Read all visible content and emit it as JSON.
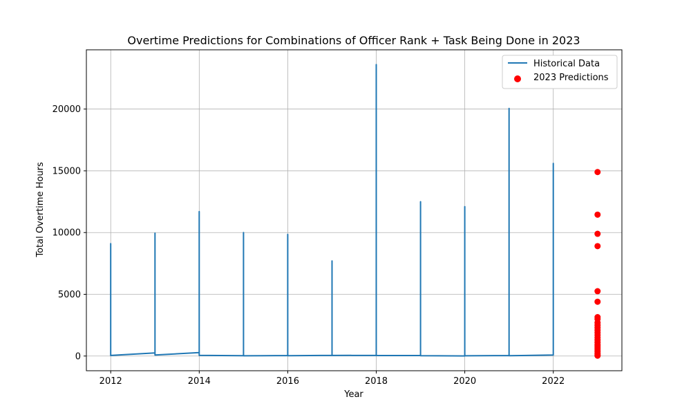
{
  "chart_data": {
    "type": "line",
    "title": "Overtime Predictions for Combinations of Officer Rank + Task Being Done in 2023",
    "xlabel": "Year",
    "ylabel": "Total Overtime Hours",
    "xlim": [
      2011.45,
      2023.55
    ],
    "ylim": [
      -1190,
      24800
    ],
    "xticks": [
      2012,
      2014,
      2016,
      2018,
      2020,
      2022
    ],
    "yticks": [
      0,
      5000,
      10000,
      15000,
      20000
    ],
    "grid": true,
    "legend_position": "top-right",
    "series": [
      {
        "name": "Historical Data",
        "type": "line",
        "color": "#1f77b4",
        "points": [
          [
            2012,
            0
          ],
          [
            2012,
            9100
          ],
          [
            2012,
            50
          ],
          [
            2013,
            250
          ],
          [
            2013,
            9950
          ],
          [
            2013,
            80
          ],
          [
            2014,
            280
          ],
          [
            2014,
            11700
          ],
          [
            2014,
            60
          ],
          [
            2015,
            30
          ],
          [
            2015,
            10000
          ],
          [
            2015,
            20
          ],
          [
            2016,
            40
          ],
          [
            2016,
            9850
          ],
          [
            2016,
            30
          ],
          [
            2017,
            60
          ],
          [
            2017,
            7700
          ],
          [
            2017,
            50
          ],
          [
            2018,
            60
          ],
          [
            2018,
            23600
          ],
          [
            2018,
            40
          ],
          [
            2019,
            50
          ],
          [
            2019,
            12500
          ],
          [
            2019,
            30
          ],
          [
            2020,
            10
          ],
          [
            2020,
            12100
          ],
          [
            2020,
            20
          ],
          [
            2021,
            40
          ],
          [
            2021,
            20050
          ],
          [
            2021,
            30
          ],
          [
            2022,
            80
          ],
          [
            2022,
            15600
          ],
          [
            2022,
            80
          ]
        ]
      },
      {
        "name": "2023 Predictions",
        "type": "scatter",
        "color": "#ff0000",
        "x": 2023,
        "values": [
          14900,
          11450,
          9900,
          8900,
          5250,
          4400,
          3150,
          3000,
          2700,
          2500,
          2300,
          2100,
          1900,
          1700,
          1500,
          1300,
          1100,
          900,
          800,
          650,
          500,
          350,
          200,
          100,
          30
        ]
      }
    ]
  }
}
